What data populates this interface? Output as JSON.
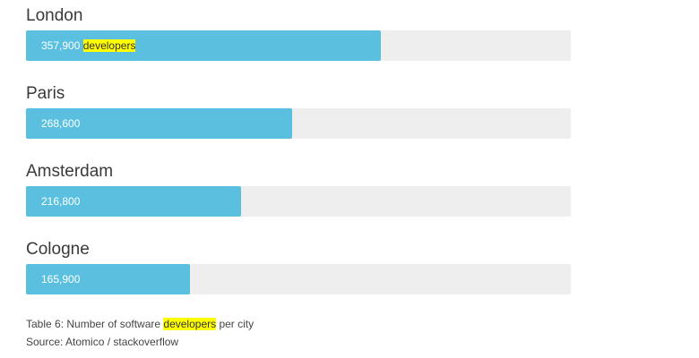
{
  "chart_data": {
    "type": "bar",
    "orientation": "horizontal",
    "categories": [
      "London",
      "Paris",
      "Amsterdam",
      "Cologne"
    ],
    "values": [
      357900,
      268600,
      216800,
      165900
    ],
    "value_labels": [
      "357,900",
      "268,600",
      "216,800",
      "165,900"
    ],
    "first_label_suffix": "developers",
    "xlim": [
      0,
      550000
    ],
    "grid": false,
    "colors": {
      "bar": "#5bc0e0",
      "track": "#eeeeee",
      "highlight": "#ffff00"
    }
  },
  "caption": {
    "prefix": "Table 6: Number of software ",
    "highlight": "developers",
    "suffix": " per city"
  },
  "source": "Source: Atomico / stackoverflow"
}
